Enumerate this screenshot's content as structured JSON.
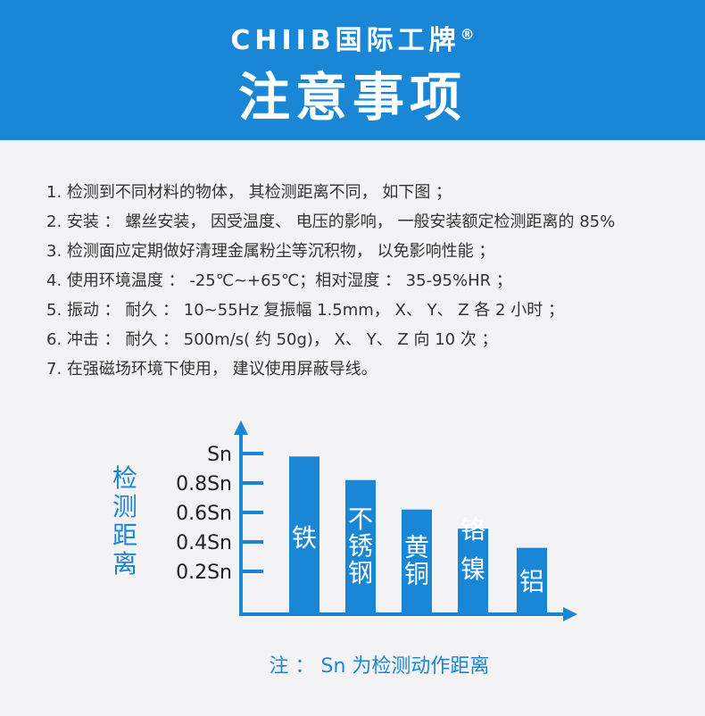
{
  "header": {
    "brand": "CHIIB国际工牌",
    "registered": "®",
    "title": "注意事项"
  },
  "notes": [
    "1. 检测到不同材料的物体， 其检测距离不同， 如下图 ；",
    "2. 安装 ： 螺丝安装， 因受温度、 电压的影响， 一般安装额定检测距离的 85%",
    "3. 检测面应定期做好清理金属粉尘等沉积物， 以免影响性能 ；",
    "4. 使用环境温度 ： -25℃~+65℃；相对湿度 ： 35-95%HR ；",
    "5. 振动 ： 耐久 ： 10~55Hz 复振幅 1.5mm， X、 Y、 Z 各 2 小时 ；",
    "6. 冲击 ： 耐久 ： 500m/s( 约 50g)， X、 Y、 Z 向 10 次 ；",
    "7. 在强磁场环境下使用， 建议使用屏蔽导线。"
  ],
  "chart_data": {
    "type": "bar",
    "ylabel": "检测距离",
    "yticks": [
      {
        "value": 1.0,
        "label": "Sn"
      },
      {
        "value": 0.8,
        "label": "0.8Sn"
      },
      {
        "value": 0.6,
        "label": "0.6Sn"
      },
      {
        "value": 0.4,
        "label": "0.4Sn"
      },
      {
        "value": 0.2,
        "label": "0.2Sn"
      }
    ],
    "categories": [
      "铁",
      "不锈钢",
      "黄铜",
      "铬镍",
      "铝"
    ],
    "values": [
      0.98,
      0.82,
      0.62,
      0.49,
      0.36
    ],
    "unit": "Sn",
    "grid": false,
    "color": "#1a86d6"
  },
  "footnote": "注 ： Sn 为检测动作距离"
}
